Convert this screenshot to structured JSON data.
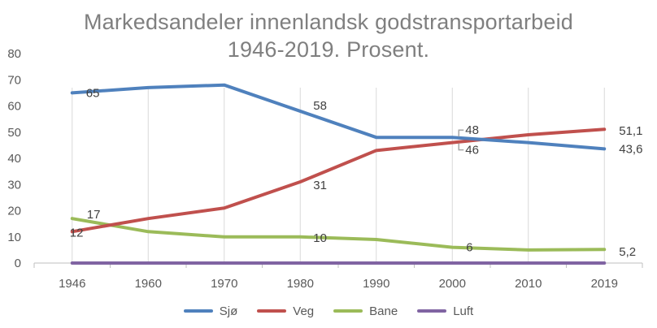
{
  "chart_data": {
    "type": "line",
    "title_line_1": "Markedsandeler innenlandsk godstransportarbeid",
    "title_line_2": "1946-2019. Prosent.",
    "categories": [
      "1946",
      "1960",
      "1970",
      "1980",
      "1990",
      "2000",
      "2010",
      "2019"
    ],
    "y_ticks": [
      "0",
      "10",
      "20",
      "30",
      "40",
      "50",
      "60",
      "70",
      "80"
    ],
    "ylim": [
      0,
      80
    ],
    "grid": "vertical",
    "legend_position": "bottom",
    "series": [
      {
        "name": "Sjø",
        "color": "#4f81bd",
        "values": [
          65,
          67,
          68,
          58,
          48,
          48,
          46,
          43.6
        ]
      },
      {
        "name": "Veg",
        "color": "#c0504d",
        "values": [
          12,
          17,
          21,
          31,
          43,
          46,
          49,
          51.1
        ]
      },
      {
        "name": "Bane",
        "color": "#9bbb59",
        "values": [
          17,
          12,
          10,
          10,
          9,
          6,
          5,
          5.2
        ]
      },
      {
        "name": "Luft",
        "color": "#8064a2",
        "values": [
          0,
          0,
          0,
          0,
          0,
          0,
          0,
          0
        ]
      }
    ],
    "data_labels": [
      {
        "series": "Sjø",
        "index": 0,
        "text": "65"
      },
      {
        "series": "Sjø",
        "index": 3,
        "text": "58"
      },
      {
        "series": "Sjø",
        "index": 5,
        "text": "48"
      },
      {
        "series": "Sjø",
        "index": 7,
        "text": "43,6"
      },
      {
        "series": "Veg",
        "index": 0,
        "text": "12"
      },
      {
        "series": "Veg",
        "index": 3,
        "text": "31"
      },
      {
        "series": "Veg",
        "index": 5,
        "text": "46"
      },
      {
        "series": "Veg",
        "index": 7,
        "text": "51,1"
      },
      {
        "series": "Bane",
        "index": 0,
        "text": "17"
      },
      {
        "series": "Bane",
        "index": 3,
        "text": "10"
      },
      {
        "series": "Bane",
        "index": 5,
        "text": "6"
      },
      {
        "series": "Bane",
        "index": 7,
        "text": "5,2"
      }
    ],
    "colors": {
      "axis": "#bfbfbf",
      "grid": "#d9d9d9",
      "title": "#7f7f7f"
    }
  }
}
